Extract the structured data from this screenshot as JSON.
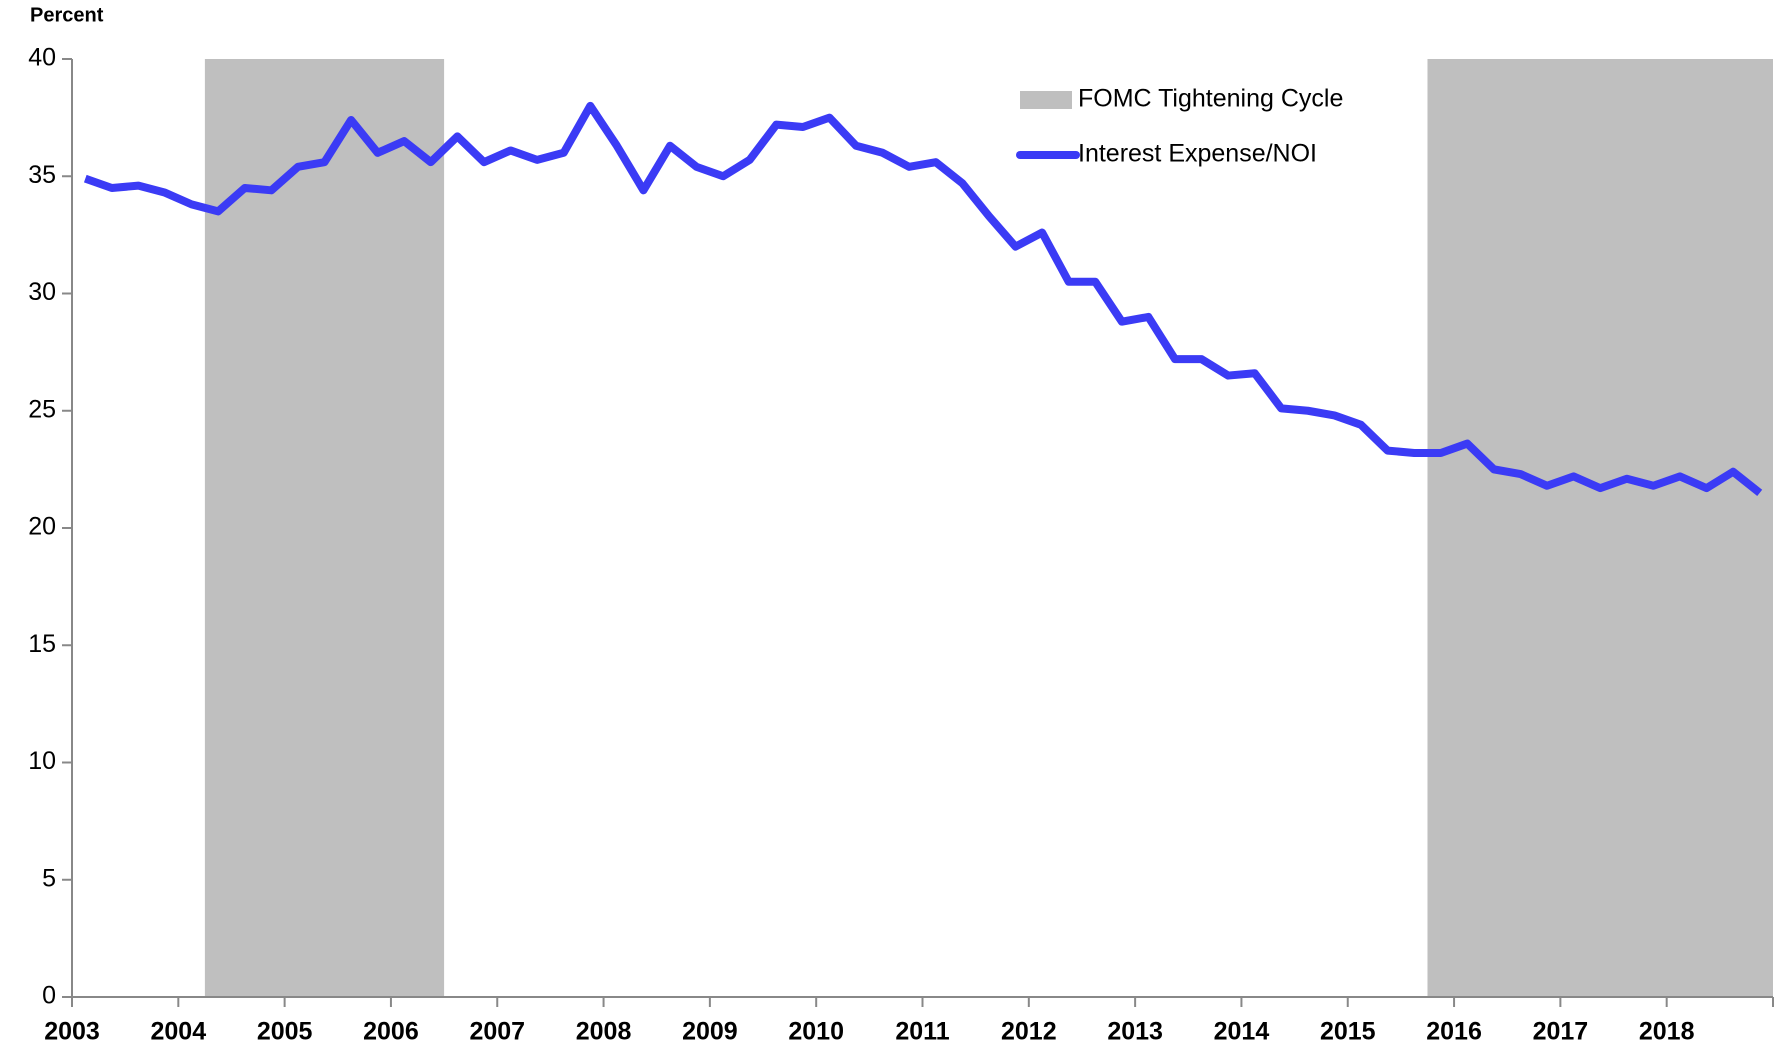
{
  "chart_data": {
    "type": "line",
    "y_label": "Percent",
    "xlim": [
      2003,
      2019
    ],
    "xticks": [
      2003,
      2004,
      2005,
      2006,
      2007,
      2008,
      2009,
      2010,
      2011,
      2012,
      2013,
      2014,
      2015,
      2016,
      2017,
      2018
    ],
    "ylim": [
      0,
      40
    ],
    "yticks": [
      0,
      5,
      10,
      15,
      20,
      25,
      30,
      35,
      40
    ],
    "grid": false,
    "legend": "top-right",
    "bands": {
      "name": "FOMC Tightening Cycle",
      "color": "#bfbfbf",
      "ranges": [
        [
          2004.25,
          2006.5
        ],
        [
          2015.75,
          2019
        ]
      ]
    },
    "x": [
      2003.125,
      2003.375,
      2003.625,
      2003.875,
      2004.125,
      2004.375,
      2004.625,
      2004.875,
      2005.125,
      2005.375,
      2005.625,
      2005.875,
      2006.125,
      2006.375,
      2006.625,
      2006.875,
      2007.125,
      2007.375,
      2007.625,
      2007.875,
      2008.125,
      2008.375,
      2008.625,
      2008.875,
      2009.125,
      2009.375,
      2009.625,
      2009.875,
      2010.125,
      2010.375,
      2010.625,
      2010.875,
      2011.125,
      2011.375,
      2011.625,
      2011.875,
      2012.125,
      2012.375,
      2012.625,
      2012.875,
      2013.125,
      2013.375,
      2013.625,
      2013.875,
      2014.125,
      2014.375,
      2014.625,
      2014.875,
      2015.125,
      2015.375,
      2015.625,
      2015.875,
      2016.125,
      2016.375,
      2016.625,
      2016.875,
      2017.125,
      2017.375,
      2017.625,
      2017.875,
      2018.125,
      2018.375,
      2018.625,
      2018.875
    ],
    "series": [
      {
        "name": "Interest Expense/NOI",
        "color": "#3b3bf5",
        "values": [
          34.9,
          34.5,
          34.6,
          34.3,
          33.8,
          33.5,
          34.5,
          34.4,
          35.4,
          35.6,
          37.4,
          36.0,
          36.5,
          35.6,
          36.7,
          35.6,
          36.1,
          35.7,
          36.0,
          38.0,
          36.3,
          34.4,
          36.3,
          35.4,
          35.0,
          35.7,
          37.2,
          37.1,
          37.5,
          36.3,
          36.0,
          35.4,
          35.6,
          34.7,
          33.3,
          32.0,
          32.6,
          30.5,
          30.5,
          28.8,
          29.0,
          27.2,
          27.2,
          26.5,
          26.6,
          25.1,
          25.0,
          24.8,
          24.4,
          23.3,
          23.2,
          23.2,
          23.6,
          22.5,
          22.3,
          21.8,
          22.2,
          21.7,
          22.1,
          21.8,
          22.2,
          21.7,
          22.4,
          21.5
        ]
      }
    ]
  }
}
